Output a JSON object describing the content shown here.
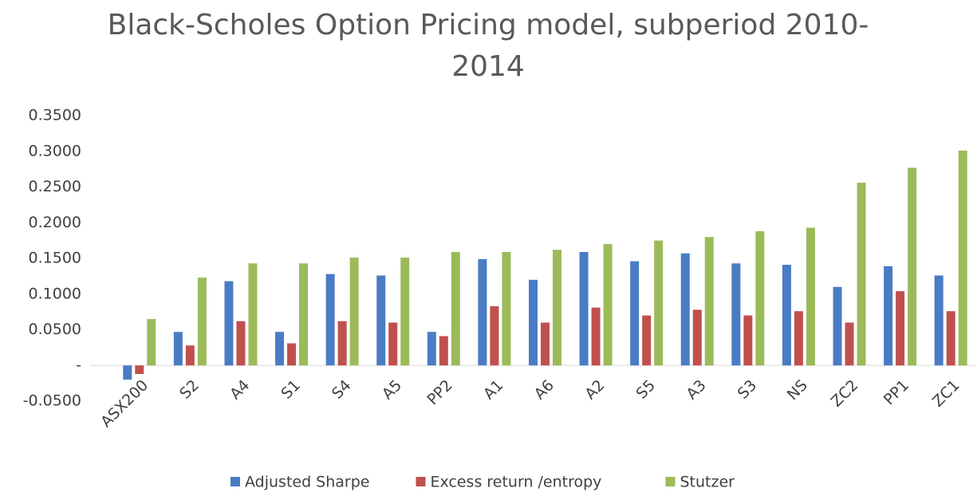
{
  "chart_data": {
    "type": "bar",
    "title": "Black-Scholes Option Pricing model, subperiod 2010-2014",
    "categories": [
      "ASX200",
      "S2",
      "A4",
      "S1",
      "S4",
      "A5",
      "PP2",
      "A1",
      "A6",
      "A2",
      "S5",
      "A3",
      "S3",
      "NS",
      "ZC2",
      "PP1",
      "ZC1"
    ],
    "series": [
      {
        "name": "Adjusted Sharpe",
        "color": "#4a7cc4",
        "values": [
          -0.02,
          0.047,
          0.118,
          0.047,
          0.128,
          0.126,
          0.047,
          0.149,
          0.12,
          0.159,
          0.146,
          0.157,
          0.143,
          0.141,
          0.11,
          0.139,
          0.126
        ]
      },
      {
        "name": "Excess return /entropy",
        "color": "#c0504d",
        "values": [
          -0.012,
          0.028,
          0.062,
          0.031,
          0.062,
          0.06,
          0.041,
          0.083,
          0.06,
          0.081,
          0.07,
          0.078,
          0.07,
          0.076,
          0.06,
          0.104,
          0.076
        ]
      },
      {
        "name": "Stutzer",
        "color": "#9bbb59",
        "values": [
          0.065,
          0.123,
          0.143,
          0.143,
          0.151,
          0.151,
          0.159,
          0.159,
          0.162,
          0.17,
          0.175,
          0.18,
          0.188,
          0.193,
          0.256,
          0.277,
          0.301
        ]
      }
    ],
    "ylim": [
      -0.05,
      0.35
    ],
    "yticks": [
      {
        "value": -0.05,
        "label": "-0.0500"
      },
      {
        "value": 0,
        "label": "-"
      },
      {
        "value": 0.05,
        "label": "0.0500"
      },
      {
        "value": 0.1,
        "label": "0.1000"
      },
      {
        "value": 0.15,
        "label": "0.1500"
      },
      {
        "value": 0.2,
        "label": "0.2000"
      },
      {
        "value": 0.25,
        "label": "0.2500"
      },
      {
        "value": 0.3,
        "label": "0.3000"
      },
      {
        "value": 0.35,
        "label": "0.3500"
      }
    ],
    "grid": false,
    "legend": "bottom"
  }
}
